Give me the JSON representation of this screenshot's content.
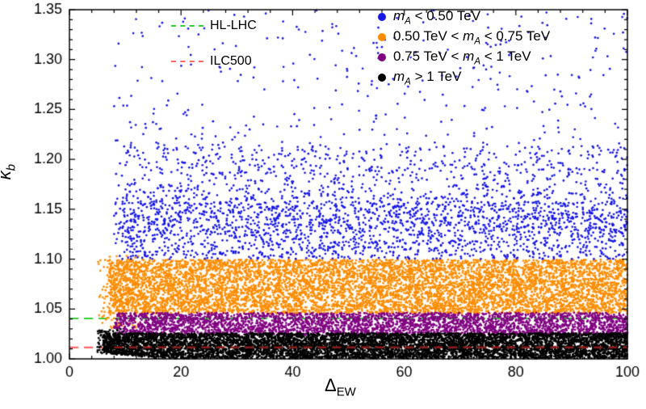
{
  "chart_data": {
    "type": "scatter",
    "title": "",
    "xlabel": {
      "symbol": "Δ",
      "sub": "EW"
    },
    "ylabel": {
      "symbol": "κ",
      "sub": "b"
    },
    "xlim": [
      0,
      100
    ],
    "ylim": [
      1.0,
      1.35
    ],
    "grid": false,
    "legend_position": "top-right-inside",
    "x_ticks": {
      "values": [
        0,
        20,
        40,
        60,
        80,
        100
      ],
      "labels": [
        "0",
        "20",
        "40",
        "60",
        "80",
        "100"
      ],
      "minor_step": 4
    },
    "y_ticks": {
      "values": [
        1.0,
        1.05,
        1.1,
        1.15,
        1.2,
        1.25,
        1.3,
        1.35
      ],
      "labels": [
        "1.00",
        "1.05",
        "1.10",
        "1.15",
        "1.20",
        "1.25",
        "1.30",
        "1.35"
      ],
      "minor_step": 0.01
    },
    "series": [
      {
        "label": {
          "pre": "",
          "var": "m",
          "sub": "A",
          "post": " < 0.50 TeV"
        },
        "label_text": "m_A < 0.50 TeV",
        "color": "#1717E8",
        "x_min": 8,
        "x_max": 100,
        "n": 3200,
        "layers": [
          {
            "frac": 0.55,
            "y0": 1.1,
            "y1": 1.158
          },
          {
            "frac": 0.27,
            "y0": 1.127,
            "y1": 1.215
          },
          {
            "frac": 0.18,
            "y0": 1.16,
            "y1": 1.35,
            "pow": 1.7
          }
        ]
      },
      {
        "label": {
          "pre": "0.50 TeV < ",
          "var": "m",
          "sub": "A",
          "post": " < 0.75 TeV"
        },
        "label_text": "0.50 TeV < m_A < 0.75 TeV",
        "color": "#FF8C00",
        "x_min": 7,
        "x_max": 100,
        "n": 7000,
        "layers": [
          {
            "frac": 1,
            "y0": 1.0455,
            "y1": 1.0995
          }
        ],
        "extra": {
          "n": 170,
          "x0": 5,
          "x1": 14,
          "y0": 1.03,
          "y1": 1.104
        }
      },
      {
        "label": {
          "pre": "0.75 TeV < ",
          "var": "m",
          "sub": "A",
          "post": " < 1 TeV"
        },
        "label_text": "0.75 TeV < m_A < 1 TeV",
        "color": "#800080",
        "x_min": 8,
        "x_max": 100,
        "n": 3400,
        "layers": [
          {
            "frac": 1,
            "y0": 1.0238,
            "y1": 1.0462
          }
        ]
      },
      {
        "label": {
          "pre": "",
          "var": "m",
          "sub": "A",
          "post": " > 1 TeV"
        },
        "label_text": "m_A > 1 TeV",
        "color": "#000000",
        "x_min": 6,
        "x_max": 100,
        "n": 7200,
        "layers": [
          {
            "frac": 1,
            "y0": 1.0005,
            "y1": 1.0258
          }
        ],
        "left_rise": {
          "x_until": 16,
          "lift": 0.009
        },
        "extra": {
          "n": 120,
          "x0": 5,
          "x1": 10,
          "y0": 1.004,
          "y1": 1.03
        }
      }
    ],
    "reference_lines": [
      {
        "label": "HL-LHC",
        "y": 1.0405,
        "color": "#33CC33",
        "style": "dashed"
      },
      {
        "label": "ILC500",
        "y": 1.0115,
        "color": "#FF6666",
        "style": "dashed",
        "overlay_color": "#8B1A1A",
        "overlay_x_start": 8
      }
    ]
  }
}
